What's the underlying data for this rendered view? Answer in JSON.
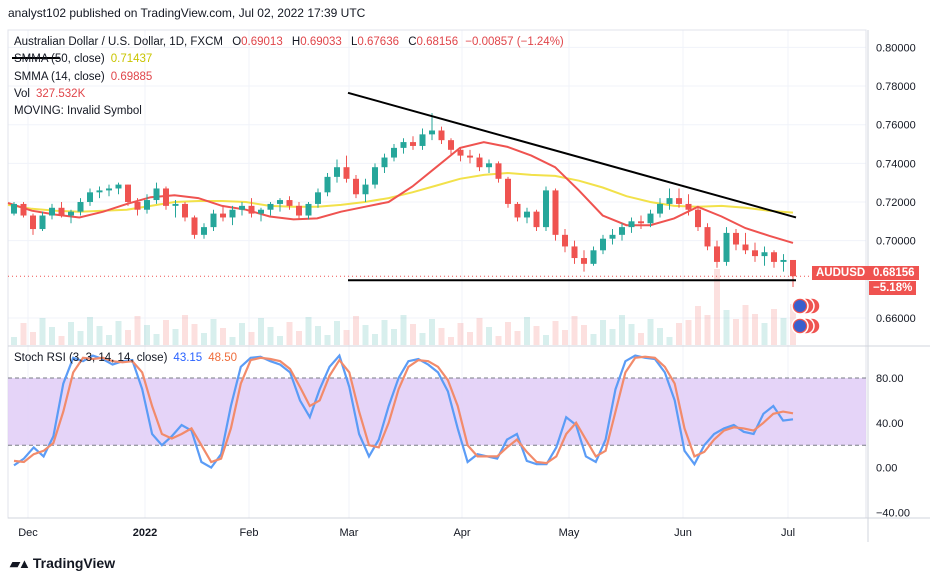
{
  "header": {
    "publisher": "analyst102 published on TradingView.com, Jul 02, 2022 17:39 UTC"
  },
  "legend": {
    "symbol": "Australian Dollar / U.S. Dollar, 1D, FXCM",
    "ohlc": {
      "o_label": "O",
      "o": "0.69013",
      "h_label": "H",
      "h": "0.69033",
      "l_label": "L",
      "l": "0.67636",
      "c_label": "C",
      "c": "0.68156",
      "change": "−0.00857 (−1.24%)"
    },
    "sma50_label": "SMMA (50, close)",
    "sma50_value": "0.71437",
    "sma14_label": "SMMA (14, close)",
    "sma14_value": "0.69885",
    "vol_label": "Vol",
    "vol_value": "327.532K",
    "moving_label": "MOVING: Invalid Symbol",
    "stoch_label": "Stoch RSI (3, 3, 14, 14, close)",
    "stoch_k": "43.15",
    "stoch_d": "48.50"
  },
  "price_tags": {
    "symbol": "AUDUSD",
    "price": "0.68156",
    "change_pct": "−5.18%"
  },
  "footer": {
    "logo_text": "TradingView"
  },
  "colors": {
    "up": "#26a69a",
    "down": "#ef5350",
    "sma50": "#f2e14a",
    "sma14": "#ef5350",
    "stoch_k": "#5b9cf6",
    "stoch_d": "#f28b6b",
    "band": "#e1cdf7",
    "trendline": "#000000"
  },
  "chart_data": [
    {
      "type": "candlestick",
      "title": "Australian Dollar / U.S. Dollar, 1D, FXCM",
      "x_ticks": [
        "Dec",
        "2022",
        "Feb",
        "Mar",
        "Apr",
        "May",
        "Jun",
        "Jul"
      ],
      "y_ticks": [
        "0.80000",
        "0.78000",
        "0.76000",
        "0.74000",
        "0.72000",
        "0.70000",
        "0.66000"
      ],
      "ylim": [
        0.646,
        0.809
      ],
      "last_close": 0.68156,
      "series_smma50": [
        0.7185,
        0.7165,
        0.7155,
        0.715,
        0.7155,
        0.716,
        0.718,
        0.72,
        0.7205,
        0.7205,
        0.72,
        0.718,
        0.7175,
        0.7175,
        0.7185,
        0.72,
        0.722,
        0.725,
        0.7285,
        0.732,
        0.734,
        0.735,
        0.734,
        0.7335,
        0.731,
        0.7275,
        0.723,
        0.72,
        0.718,
        0.7175,
        0.718,
        0.717,
        0.7155,
        0.7145
      ],
      "series_smma14": [
        0.7195,
        0.7155,
        0.7135,
        0.712,
        0.715,
        0.719,
        0.7225,
        0.7235,
        0.722,
        0.718,
        0.716,
        0.7125,
        0.711,
        0.7115,
        0.715,
        0.7175,
        0.72,
        0.728,
        0.738,
        0.748,
        0.751,
        0.7485,
        0.744,
        0.738,
        0.726,
        0.713,
        0.708,
        0.708,
        0.7115,
        0.7175,
        0.7125,
        0.7065,
        0.7025,
        0.69885
      ],
      "trendline_upper": [
        [
          0.7765,
          0.712
        ]
      ],
      "trendline_lower": 0.6795,
      "candles": [
        [
          0.714,
          0.72,
          0.713,
          0.719
        ],
        [
          0.719,
          0.72,
          0.712,
          0.713
        ],
        [
          0.713,
          0.714,
          0.703,
          0.706
        ],
        [
          0.706,
          0.715,
          0.705,
          0.713
        ],
        [
          0.713,
          0.719,
          0.711,
          0.717
        ],
        [
          0.717,
          0.72,
          0.712,
          0.713
        ],
        [
          0.713,
          0.716,
          0.709,
          0.715
        ],
        [
          0.715,
          0.722,
          0.713,
          0.72
        ],
        [
          0.72,
          0.727,
          0.718,
          0.725
        ],
        [
          0.725,
          0.728,
          0.722,
          0.726
        ],
        [
          0.726,
          0.729,
          0.723,
          0.727
        ],
        [
          0.727,
          0.73,
          0.724,
          0.729
        ],
        [
          0.729,
          0.729,
          0.718,
          0.72
        ],
        [
          0.72,
          0.722,
          0.713,
          0.716
        ],
        [
          0.716,
          0.724,
          0.714,
          0.721
        ],
        [
          0.721,
          0.73,
          0.719,
          0.727
        ],
        [
          0.727,
          0.728,
          0.716,
          0.718
        ],
        [
          0.718,
          0.721,
          0.712,
          0.719
        ],
        [
          0.719,
          0.72,
          0.71,
          0.712
        ],
        [
          0.712,
          0.713,
          0.701,
          0.703
        ],
        [
          0.703,
          0.709,
          0.701,
          0.707
        ],
        [
          0.707,
          0.716,
          0.705,
          0.714
        ],
        [
          0.714,
          0.718,
          0.71,
          0.712
        ],
        [
          0.712,
          0.718,
          0.708,
          0.716
        ],
        [
          0.716,
          0.72,
          0.713,
          0.718
        ],
        [
          0.718,
          0.722,
          0.712,
          0.714
        ],
        [
          0.714,
          0.717,
          0.71,
          0.716
        ],
        [
          0.716,
          0.72,
          0.713,
          0.719
        ],
        [
          0.719,
          0.722,
          0.715,
          0.721
        ],
        [
          0.721,
          0.723,
          0.716,
          0.718
        ],
        [
          0.718,
          0.72,
          0.711,
          0.713
        ],
        [
          0.713,
          0.72,
          0.711,
          0.719
        ],
        [
          0.719,
          0.727,
          0.717,
          0.725
        ],
        [
          0.725,
          0.735,
          0.723,
          0.733
        ],
        [
          0.733,
          0.742,
          0.73,
          0.738
        ],
        [
          0.738,
          0.744,
          0.73,
          0.732
        ],
        [
          0.732,
          0.734,
          0.722,
          0.724
        ],
        [
          0.724,
          0.732,
          0.72,
          0.729
        ],
        [
          0.729,
          0.74,
          0.727,
          0.738
        ],
        [
          0.738,
          0.745,
          0.735,
          0.743
        ],
        [
          0.743,
          0.75,
          0.741,
          0.748
        ],
        [
          0.748,
          0.753,
          0.745,
          0.751
        ],
        [
          0.751,
          0.754,
          0.747,
          0.749
        ],
        [
          0.749,
          0.758,
          0.747,
          0.755
        ],
        [
          0.755,
          0.766,
          0.752,
          0.757
        ],
        [
          0.757,
          0.759,
          0.75,
          0.752
        ],
        [
          0.752,
          0.753,
          0.744,
          0.747
        ],
        [
          0.747,
          0.748,
          0.741,
          0.744
        ],
        [
          0.744,
          0.747,
          0.74,
          0.743
        ],
        [
          0.743,
          0.745,
          0.736,
          0.738
        ],
        [
          0.738,
          0.742,
          0.735,
          0.74
        ],
        [
          0.74,
          0.741,
          0.73,
          0.732
        ],
        [
          0.732,
          0.733,
          0.717,
          0.719
        ],
        [
          0.719,
          0.72,
          0.71,
          0.712
        ],
        [
          0.712,
          0.717,
          0.709,
          0.715
        ],
        [
          0.715,
          0.716,
          0.705,
          0.707
        ],
        [
          0.707,
          0.728,
          0.705,
          0.726
        ],
        [
          0.726,
          0.727,
          0.7,
          0.703
        ],
        [
          0.703,
          0.706,
          0.694,
          0.697
        ],
        [
          0.697,
          0.7,
          0.688,
          0.691
        ],
        [
          0.691,
          0.695,
          0.684,
          0.688
        ],
        [
          0.688,
          0.697,
          0.687,
          0.695
        ],
        [
          0.695,
          0.703,
          0.693,
          0.701
        ],
        [
          0.701,
          0.706,
          0.698,
          0.703
        ],
        [
          0.703,
          0.709,
          0.7,
          0.707
        ],
        [
          0.707,
          0.712,
          0.704,
          0.71
        ],
        [
          0.71,
          0.713,
          0.706,
          0.709
        ],
        [
          0.709,
          0.716,
          0.707,
          0.714
        ],
        [
          0.714,
          0.722,
          0.712,
          0.719
        ],
        [
          0.719,
          0.727,
          0.716,
          0.722
        ],
        [
          0.722,
          0.727,
          0.717,
          0.719
        ],
        [
          0.719,
          0.724,
          0.713,
          0.716
        ],
        [
          0.716,
          0.718,
          0.705,
          0.707
        ],
        [
          0.707,
          0.709,
          0.695,
          0.697
        ],
        [
          0.697,
          0.7,
          0.686,
          0.689
        ],
        [
          0.689,
          0.707,
          0.687,
          0.704
        ],
        [
          0.704,
          0.706,
          0.695,
          0.698
        ],
        [
          0.698,
          0.704,
          0.693,
          0.695
        ],
        [
          0.695,
          0.699,
          0.689,
          0.692
        ],
        [
          0.692,
          0.697,
          0.687,
          0.694
        ],
        [
          0.694,
          0.695,
          0.686,
          0.689
        ],
        [
          0.689,
          0.693,
          0.684,
          0.69
        ],
        [
          0.69,
          0.69,
          0.676,
          0.6816
        ]
      ]
    },
    {
      "type": "line",
      "title": "Stoch RSI (3, 3, 14, 14, close)",
      "y_ticks": [
        "80.00",
        "40.00",
        "0.00",
        "−40.00"
      ],
      "ylim": [
        -45,
        105
      ],
      "band": [
        20,
        80
      ],
      "series": [
        {
          "name": "K",
          "values": [
            2,
            8,
            18,
            10,
            28,
            75,
            98,
            95,
            100,
            97,
            92,
            95,
            96,
            70,
            30,
            20,
            28,
            38,
            33,
            5,
            0,
            12,
            55,
            90,
            98,
            99,
            95,
            92,
            85,
            60,
            45,
            70,
            90,
            100,
            72,
            30,
            10,
            25,
            55,
            80,
            95,
            97,
            92,
            85,
            68,
            35,
            5,
            12,
            10,
            8,
            25,
            30,
            6,
            3,
            3,
            18,
            45,
            38,
            10,
            5,
            25,
            70,
            95,
            100,
            98,
            97,
            85,
            60,
            15,
            3,
            20,
            30,
            35,
            38,
            32,
            30,
            48,
            55,
            42,
            43.15
          ]
        },
        {
          "name": "D",
          "values": [
            6,
            5,
            12,
            15,
            22,
            50,
            85,
            98,
            97,
            98,
            95,
            94,
            95,
            85,
            55,
            30,
            26,
            30,
            35,
            20,
            5,
            8,
            35,
            75,
            96,
            98,
            97,
            95,
            88,
            72,
            55,
            60,
            82,
            96,
            85,
            50,
            20,
            18,
            40,
            70,
            90,
            96,
            95,
            90,
            78,
            55,
            20,
            10,
            10,
            10,
            18,
            25,
            14,
            5,
            4,
            10,
            30,
            40,
            25,
            10,
            15,
            50,
            85,
            98,
            99,
            98,
            90,
            75,
            35,
            10,
            14,
            25,
            33,
            36,
            35,
            33,
            40,
            48,
            50,
            48.5
          ]
        }
      ]
    }
  ]
}
